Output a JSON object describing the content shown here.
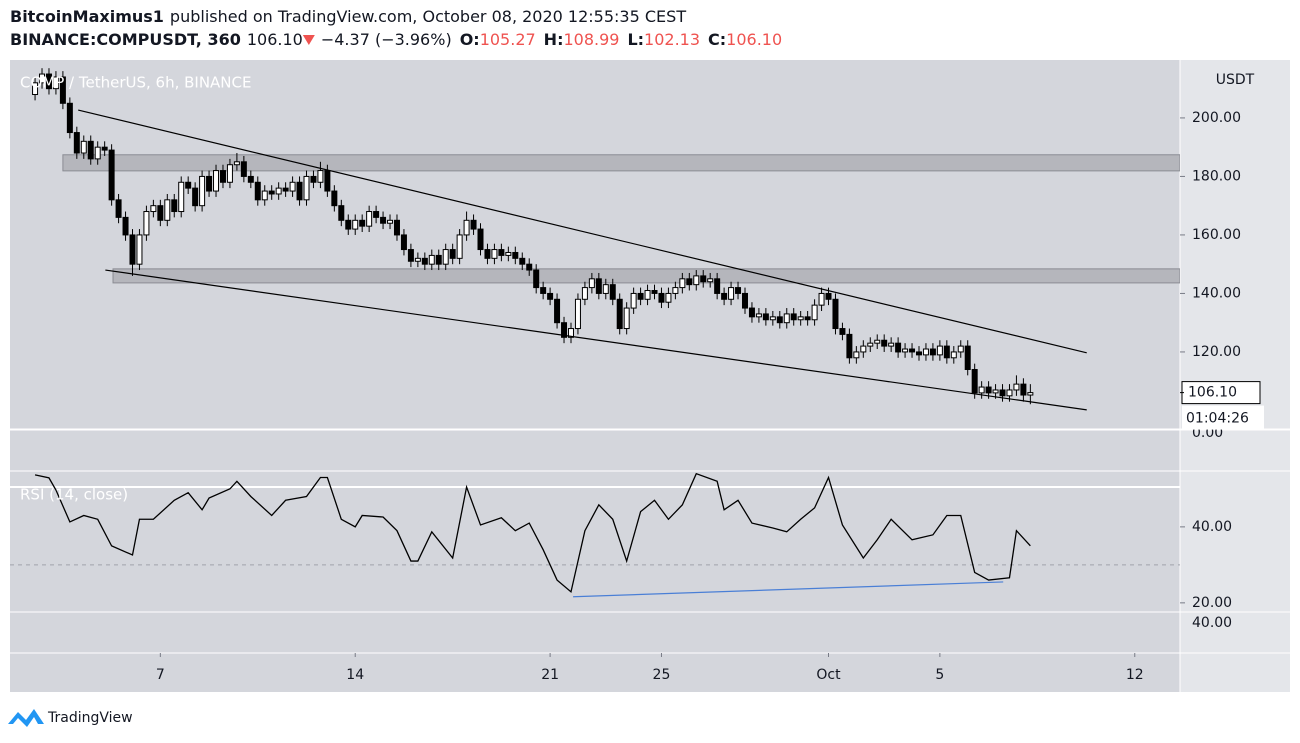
{
  "header": {
    "author": "BitcoinMaximus1",
    "published": "published on TradingView.com, October 08, 2020 12:55:35 CEST",
    "symbol": "BINANCE:COMPUSDT, 360",
    "price": "106.10",
    "change": "−4.37 (−3.96%)",
    "ohlc": [
      {
        "key": "O:",
        "value": "105.27"
      },
      {
        "key": "H:",
        "value": "108.99"
      },
      {
        "key": "L:",
        "value": "102.13"
      },
      {
        "key": "C:",
        "value": "106.10"
      }
    ]
  },
  "chart_data": {
    "type": "candlestick",
    "legend": "COMP / TetherUS, 6h, BINANCE",
    "y_axis_unit": "USDT",
    "open": [
      208,
      212,
      215,
      210,
      214,
      205,
      195,
      188,
      192,
      186,
      190,
      189,
      172,
      166,
      160,
      150,
      160,
      168,
      170,
      165,
      172,
      168,
      178,
      176,
      170,
      180,
      175,
      182,
      178,
      184,
      185,
      180,
      178,
      172,
      175,
      174,
      176,
      175,
      178,
      172,
      180,
      178,
      182,
      175,
      170,
      165,
      162,
      165,
      163,
      168,
      166,
      164,
      165,
      160,
      155,
      151,
      152,
      150,
      153,
      150,
      155,
      152,
      160,
      165,
      162,
      155,
      152,
      155,
      153,
      154,
      152,
      150,
      148,
      142,
      140,
      138,
      130,
      125,
      128,
      138,
      142,
      145,
      140,
      143,
      138,
      128,
      135,
      140,
      138,
      141,
      140,
      137,
      140,
      142,
      145,
      143,
      146,
      144,
      145,
      140,
      138,
      142,
      140,
      135,
      132,
      133,
      131,
      132,
      130,
      133,
      131,
      132,
      131,
      136,
      140,
      138,
      128,
      126,
      118,
      120,
      122,
      123,
      124,
      122,
      123,
      120,
      121,
      120,
      119,
      121,
      119,
      122,
      118,
      120,
      122,
      114,
      106,
      108,
      106,
      107,
      105,
      107,
      109,
      105.27
    ],
    "high": [
      214,
      217,
      217,
      216,
      216,
      207,
      197,
      194,
      194,
      192,
      192,
      191,
      174,
      168,
      162,
      162,
      170,
      172,
      172,
      174,
      174,
      180,
      180,
      178,
      182,
      182,
      184,
      184,
      186,
      188,
      187,
      182,
      180,
      177,
      177,
      178,
      178,
      180,
      180,
      182,
      182,
      185,
      184,
      177,
      172,
      167,
      167,
      167,
      170,
      170,
      168,
      167,
      167,
      162,
      157,
      154,
      154,
      155,
      155,
      157,
      157,
      162,
      168,
      167,
      164,
      157,
      157,
      157,
      156,
      156,
      154,
      152,
      150,
      144,
      142,
      140,
      132,
      130,
      140,
      144,
      147,
      147,
      145,
      145,
      140,
      137,
      142,
      142,
      143,
      143,
      142,
      142,
      144,
      147,
      147,
      148,
      148,
      147,
      147,
      142,
      144,
      144,
      142,
      137,
      135,
      135,
      134,
      134,
      135,
      135,
      134,
      134,
      138,
      142,
      142,
      140,
      130,
      128,
      122,
      124,
      125,
      126,
      126,
      125,
      125,
      123,
      123,
      122,
      123,
      123,
      124,
      124,
      122,
      124,
      124,
      116,
      110,
      110,
      109,
      109,
      109,
      112,
      111,
      108.99
    ],
    "low": [
      206,
      210,
      208,
      208,
      203,
      193,
      186,
      186,
      184,
      184,
      187,
      170,
      164,
      158,
      146,
      148,
      158,
      166,
      163,
      163,
      166,
      166,
      174,
      168,
      168,
      173,
      173,
      176,
      176,
      182,
      178,
      176,
      170,
      170,
      172,
      172,
      173,
      173,
      170,
      170,
      176,
      176,
      173,
      168,
      163,
      160,
      160,
      161,
      161,
      164,
      162,
      162,
      158,
      153,
      149,
      149,
      148,
      148,
      148,
      148,
      150,
      150,
      158,
      160,
      153,
      150,
      150,
      151,
      151,
      150,
      148,
      146,
      140,
      138,
      136,
      128,
      123,
      123,
      126,
      136,
      140,
      138,
      138,
      136,
      126,
      126,
      133,
      136,
      136,
      138,
      135,
      135,
      138,
      140,
      141,
      141,
      142,
      142,
      138,
      136,
      136,
      138,
      133,
      130,
      130,
      129,
      129,
      128,
      128,
      129,
      129,
      129,
      129,
      134,
      136,
      126,
      124,
      116,
      116,
      118,
      120,
      121,
      120,
      120,
      118,
      118,
      118,
      117,
      117,
      117,
      117,
      116,
      116,
      118,
      112,
      104,
      104,
      104,
      104,
      103,
      103,
      105,
      103,
      102.13
    ],
    "close": [
      212,
      215,
      210,
      214,
      205,
      195,
      188,
      192,
      186,
      190,
      189,
      172,
      166,
      160,
      150,
      160,
      168,
      170,
      165,
      172,
      168,
      178,
      176,
      170,
      180,
      175,
      182,
      178,
      184,
      185,
      180,
      178,
      172,
      175,
      174,
      176,
      175,
      178,
      172,
      180,
      178,
      182,
      175,
      170,
      165,
      162,
      165,
      163,
      168,
      166,
      164,
      165,
      160,
      155,
      151,
      152,
      150,
      153,
      150,
      155,
      152,
      160,
      165,
      162,
      155,
      152,
      155,
      153,
      154,
      152,
      150,
      148,
      142,
      140,
      138,
      130,
      125,
      128,
      138,
      142,
      145,
      140,
      143,
      138,
      128,
      135,
      140,
      138,
      141,
      140,
      137,
      140,
      142,
      145,
      143,
      146,
      144,
      145,
      140,
      138,
      142,
      140,
      135,
      132,
      133,
      131,
      132,
      130,
      133,
      131,
      132,
      131,
      136,
      140,
      138,
      128,
      126,
      118,
      120,
      122,
      123,
      124,
      122,
      123,
      120,
      121,
      120,
      119,
      121,
      119,
      122,
      118,
      120,
      122,
      114,
      106,
      108,
      106,
      107,
      105,
      107,
      109,
      105.27,
      106.1
    ],
    "up_color": "#ffffff",
    "down_color": "#000000",
    "line_color": "#000000",
    "xlim": [
      -3.6,
      164.5
    ],
    "ylim": [
      94,
      219.8
    ],
    "yticks": [
      {
        "value": 200,
        "label": "200.00"
      },
      {
        "value": 180,
        "label": "180.00"
      },
      {
        "value": 160,
        "label": "160.00"
      },
      {
        "value": 140,
        "label": "140.00"
      },
      {
        "value": 120,
        "label": "120.00"
      }
    ],
    "xticks": [
      {
        "value": 18,
        "label": "7"
      },
      {
        "value": 46,
        "label": "14"
      },
      {
        "value": 74,
        "label": "21"
      },
      {
        "value": 90,
        "label": "25"
      },
      {
        "value": 114,
        "label": "Oct"
      },
      {
        "value": 130,
        "label": "5"
      },
      {
        "value": 158,
        "label": "12"
      }
    ],
    "zones": [
      {
        "from": 181.9,
        "to": 187.4,
        "x_start": 4
      },
      {
        "from": 143.6,
        "to": 148.4,
        "x_start": 11.2
      }
    ],
    "trendlines": [
      {
        "x": [
          6.2,
          151.1
        ],
        "y": [
          202.7,
          119.7
        ]
      },
      {
        "x": [
          10.1,
          151.1
        ],
        "y": [
          148,
          100.2
        ]
      }
    ],
    "price_marker": {
      "value": 106.1,
      "label": "106.10"
    },
    "countdown": "01:04:26",
    "overlay_labels": [
      "0.00",
      "40.00"
    ],
    "indicator": {
      "type": "line",
      "name": "RSI (14, close)",
      "color": "#000000",
      "x": [
        0,
        2,
        3,
        5,
        7,
        9,
        11,
        14,
        15,
        17,
        20,
        22,
        24,
        25,
        28,
        29,
        31,
        34,
        36,
        39,
        41,
        42,
        44,
        46,
        47,
        50,
        52,
        54,
        55,
        57,
        60,
        62,
        64,
        67,
        69,
        71,
        73,
        75,
        77,
        79,
        81,
        83,
        85,
        87,
        89,
        91,
        93,
        95,
        98,
        99,
        101,
        103,
        106,
        108,
        110,
        112,
        114,
        116,
        119,
        121,
        123,
        126,
        129,
        131,
        133,
        135,
        137,
        140,
        141,
        143
      ],
      "values": [
        53.7,
        52.9,
        49.7,
        41.3,
        43,
        42,
        35,
        32.6,
        42,
        42,
        47,
        49,
        44.5,
        47.6,
        50,
        52,
        48,
        43,
        47,
        48,
        53,
        53,
        42,
        40,
        43,
        42.6,
        39,
        31,
        31,
        38.7,
        31.8,
        50.5,
        40.5,
        42.4,
        39,
        41,
        34,
        26,
        22.9,
        39,
        45.8,
        42,
        31,
        44,
        47,
        42,
        45.8,
        54,
        52,
        44.5,
        47,
        41,
        39.7,
        38.7,
        42,
        45,
        53,
        40.5,
        31.8,
        36.6,
        42,
        36.6,
        37.9,
        43,
        43,
        28,
        26,
        26.6,
        39,
        35
      ],
      "ylim": [
        6.8,
        65.5
      ],
      "yticks": [
        {
          "value": 40,
          "label": "40.00"
        },
        {
          "value": 20,
          "label": "20.00"
        }
      ],
      "levels": [
        30
      ],
      "divergence": {
        "x": [
          77.3,
          139.1
        ],
        "y": [
          21.6,
          25.5
        ],
        "color": "#4a7fd6"
      }
    }
  },
  "footer": {
    "brand": "TradingView"
  }
}
